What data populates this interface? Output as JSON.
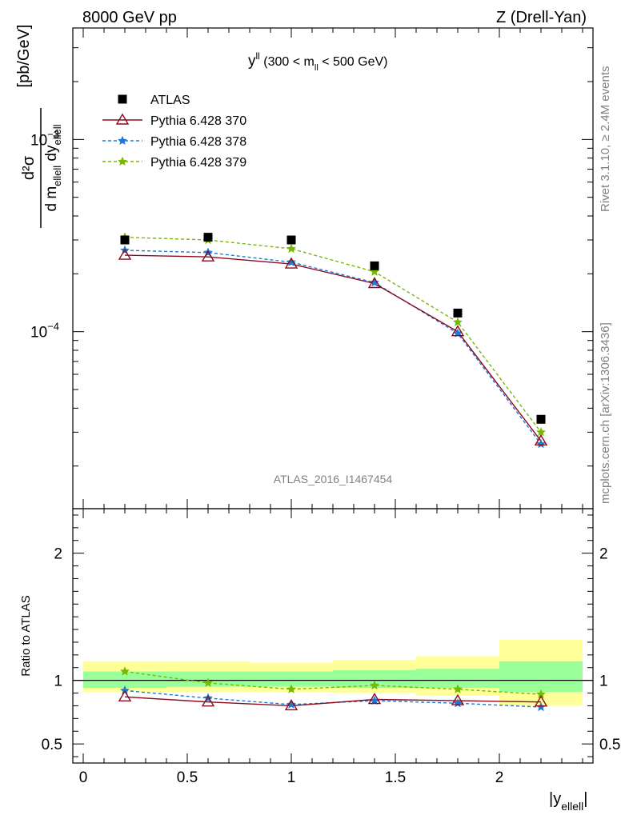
{
  "header": {
    "energy": "8000 GeV pp",
    "process": "Z (Drell-Yan)"
  },
  "side_text": {
    "rivet": "Rivet 3.1.10, ≥ 2.4M events",
    "mcplots": "mcplots.cern.ch [arXiv:1306.3436]"
  },
  "panel_title": {
    "main": "y",
    "sup": "ll",
    "pre": " (300 < m",
    "sub": "ll",
    "post": " < 500 GeV)"
  },
  "analysis_id": "ATLAS_2016_I1467454",
  "ylabel_main": {
    "num": "d²σ",
    "den_a": "d m",
    "den_sub1": "ellell",
    "den_b": " dy",
    "den_sub2": "ellell",
    "unit": "[pb/GeV]"
  },
  "ylabel_ratio": "Ratio to ATLAS",
  "xlabel": {
    "main": "|y",
    "sub": "ellell",
    "end": "|"
  },
  "colors": {
    "data": "#000000",
    "p370": "#8b0a1e",
    "p378": "#1f78d4",
    "p379": "#76b900",
    "band_inner": "#99ff99",
    "band_outer": "#ffff99"
  },
  "chart_data": {
    "type": "line",
    "x": [
      0.2,
      0.6,
      1.0,
      1.4,
      1.8,
      2.2
    ],
    "x_bins": [
      [
        0.0,
        0.4
      ],
      [
        0.4,
        0.8
      ],
      [
        0.8,
        1.2
      ],
      [
        1.2,
        1.6
      ],
      [
        1.6,
        2.0
      ],
      [
        2.0,
        2.4
      ]
    ],
    "xlim": [
      -0.05,
      2.45
    ],
    "xticks": [
      0,
      0.5,
      1,
      1.5,
      2
    ],
    "xtick_labels": [
      "0",
      "0.5",
      "1",
      "1.5",
      "2"
    ],
    "main": {
      "yscale": "log",
      "ylim": [
        1.2e-05,
        0.0038
      ],
      "ytick_labels": [
        {
          "value": 0.0001,
          "base": "10",
          "exp": "−4"
        },
        {
          "value": 0.001,
          "base": "10",
          "exp": "−3"
        }
      ]
    },
    "ratio": {
      "ylim": [
        0.35,
        2.35
      ],
      "yticks": [
        0.5,
        1,
        2
      ],
      "ytick_labels": [
        "0.5",
        "1",
        "2"
      ],
      "band_inner": [
        [
          0.94,
          1.07
        ],
        [
          0.95,
          1.07
        ],
        [
          0.95,
          1.07
        ],
        [
          0.94,
          1.08
        ],
        [
          0.94,
          1.09
        ],
        [
          0.91,
          1.15
        ]
      ],
      "band_outer": [
        [
          0.91,
          1.15
        ],
        [
          0.91,
          1.15
        ],
        [
          0.91,
          1.14
        ],
        [
          0.9,
          1.16
        ],
        [
          0.88,
          1.19
        ],
        [
          0.8,
          1.32
        ]
      ]
    },
    "series": [
      {
        "name": "ATLAS",
        "marker": "square",
        "values": [
          0.0003,
          0.00031,
          0.0003,
          0.00022,
          0.000125,
          3.5e-05
        ],
        "ratio": [
          1,
          1,
          1,
          1,
          1,
          1
        ]
      },
      {
        "name": "Pythia 6.428 370",
        "marker": "triangle",
        "values": [
          0.00025,
          0.000245,
          0.000225,
          0.000178,
          0.0001,
          2.7e-05
        ],
        "ratio": [
          0.87,
          0.83,
          0.8,
          0.85,
          0.84,
          0.83
        ]
      },
      {
        "name": "Pythia 6.428 378",
        "marker": "star",
        "values": [
          0.000265,
          0.000258,
          0.00023,
          0.00018,
          9.8e-05,
          2.6e-05
        ],
        "ratio": [
          0.92,
          0.86,
          0.81,
          0.84,
          0.82,
          0.79
        ]
      },
      {
        "name": "Pythia 6.428 379",
        "marker": "star",
        "values": [
          0.00031,
          0.0003,
          0.00027,
          0.000205,
          0.000112,
          3e-05
        ],
        "ratio": [
          1.07,
          0.98,
          0.93,
          0.96,
          0.93,
          0.89
        ]
      }
    ],
    "legend_position": "top-left"
  }
}
